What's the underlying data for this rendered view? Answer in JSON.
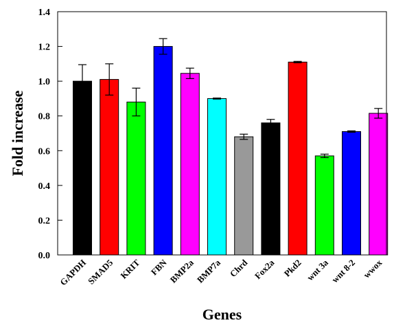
{
  "chart_data": {
    "type": "bar",
    "xlabel": "Genes",
    "ylabel": "Fold increase",
    "ylim": [
      0,
      1.4
    ],
    "yticks": [
      0.0,
      0.2,
      0.4,
      0.6,
      0.8,
      1.0,
      1.2,
      1.4
    ],
    "ytick_labels": [
      "0.0",
      "0.2",
      "0.4",
      "0.6",
      "0.8",
      "1.0",
      "1.2",
      "1.4"
    ],
    "grid": false,
    "legend": "none",
    "categories": [
      "GAPDH",
      "SMAD5",
      "KRIT",
      "FBN",
      "BMP2a",
      "BMP7a",
      "Chrd",
      "Fox2a",
      "Pkd2",
      "wnt 3a",
      "wnt 8-2",
      "wwox"
    ],
    "values": [
      1.0,
      1.01,
      0.88,
      1.2,
      1.045,
      0.9,
      0.68,
      0.76,
      1.11,
      0.57,
      0.71,
      0.815
    ],
    "errors": [
      0.095,
      0.09,
      0.08,
      0.045,
      0.03,
      0.003,
      0.015,
      0.02,
      0.004,
      0.01,
      0.004,
      0.028
    ],
    "colors": [
      "#000000",
      "#ff0000",
      "#00ff00",
      "#0000ff",
      "#ff00ff",
      "#00ffff",
      "#999999",
      "#000000",
      "#ff0000",
      "#00ff00",
      "#0000ff",
      "#ff00ff"
    ]
  }
}
